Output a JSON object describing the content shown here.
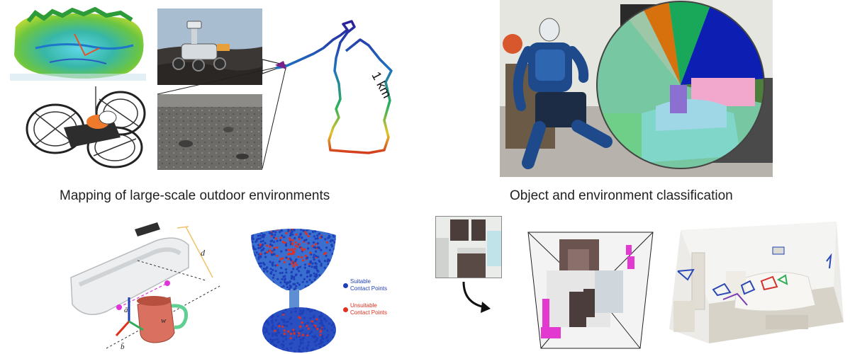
{
  "top_left": {
    "caption": "Mapping of large-scale outdoor environments",
    "trajectory_label": "1 km"
  },
  "top_right": {
    "caption": "Object and environment classification"
  },
  "bottom_left": {
    "label_d": "d",
    "label_a": "ā",
    "label_b": "b̄",
    "label_w": "w",
    "legend_suitable_line1": "Suitable",
    "legend_suitable_line2": "Contact Points",
    "legend_unsuitable_line1": "Unsuitable",
    "legend_unsuitable_line2": "Contact Points",
    "colors": {
      "suitable": "#1f3fb8",
      "unsuitable": "#e0301e"
    }
  }
}
